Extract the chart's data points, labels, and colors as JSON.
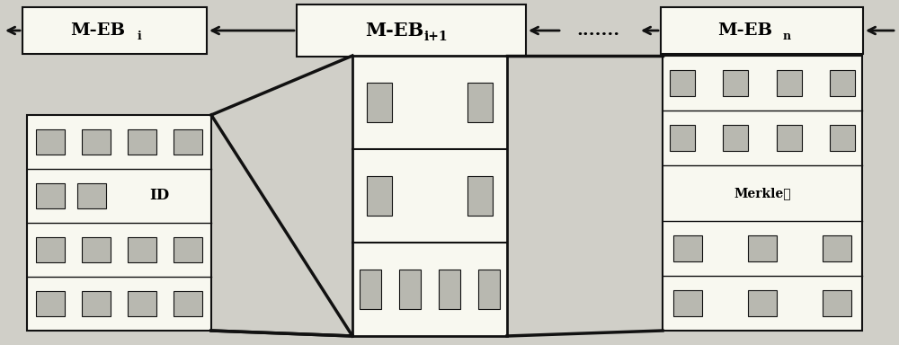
{
  "bg_color": "#d0cfc8",
  "box_fc": "#f8f8f0",
  "box_ec": "#111111",
  "cell_fc": "#b8b8b0",
  "cell_ec": "#111111",
  "arrow_color": "#111111",
  "meb_i_main": "M-EB",
  "meb_i_sub": "i",
  "meb_i1_main": "M-EB",
  "meb_i1_sub": "i+1",
  "meb_n_main": "M-EB",
  "meb_n_sub": "n",
  "dots_text": ".......",
  "merkle_text": "Merkle树",
  "id_text": "ID",
  "figw": 10.0,
  "figh": 3.84,
  "dpi": 100
}
